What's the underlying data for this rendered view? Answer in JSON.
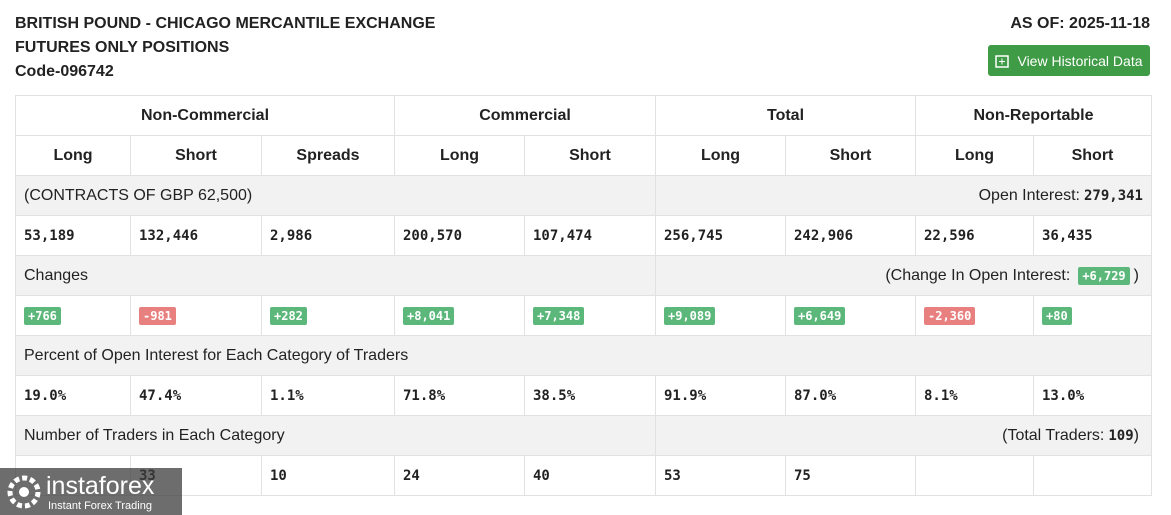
{
  "header": {
    "title_line1": "BRITISH POUND - CHICAGO MERCANTILE EXCHANGE",
    "title_line2": "FUTURES ONLY POSITIONS",
    "code": "Code-096742",
    "as_of": "AS OF: 2025-11-18",
    "button": "View Historical Data"
  },
  "table": {
    "groups": [
      "Non-Commercial",
      "Commercial",
      "Total",
      "Non-Reportable"
    ],
    "columns": [
      "Long",
      "Short",
      "Spreads",
      "Long",
      "Short",
      "Long",
      "Short",
      "Long",
      "Short"
    ],
    "contracts_label": "(CONTRACTS OF GBP 62,500)",
    "open_interest_label": "Open Interest:",
    "open_interest": "279,341",
    "positions": [
      "53,189",
      "132,446",
      "2,986",
      "200,570",
      "107,474",
      "256,745",
      "242,906",
      "22,596",
      "36,435"
    ],
    "changes_label": "Changes",
    "change_oi_label": "(Change In Open Interest:",
    "change_oi": "+6,729",
    "change_oi_close": ")",
    "changes": [
      "+766",
      "-981",
      "+282",
      "+8,041",
      "+7,348",
      "+9,089",
      "+6,649",
      "-2,360",
      "+80"
    ],
    "percent_label": "Percent of Open Interest for Each Category of Traders",
    "percent": [
      "19.0%",
      "47.4%",
      "1.1%",
      "71.8%",
      "38.5%",
      "91.9%",
      "87.0%",
      "8.1%",
      "13.0%"
    ],
    "traders_label": "Number of Traders in Each Category",
    "total_traders_label": "(Total Traders:",
    "total_traders": "109",
    "total_traders_close": ")",
    "traders": [
      "33",
      "10",
      "24",
      "40",
      "53",
      "75"
    ]
  },
  "watermark": {
    "brand": "instaforex",
    "tagline": "Instant Forex Trading"
  }
}
